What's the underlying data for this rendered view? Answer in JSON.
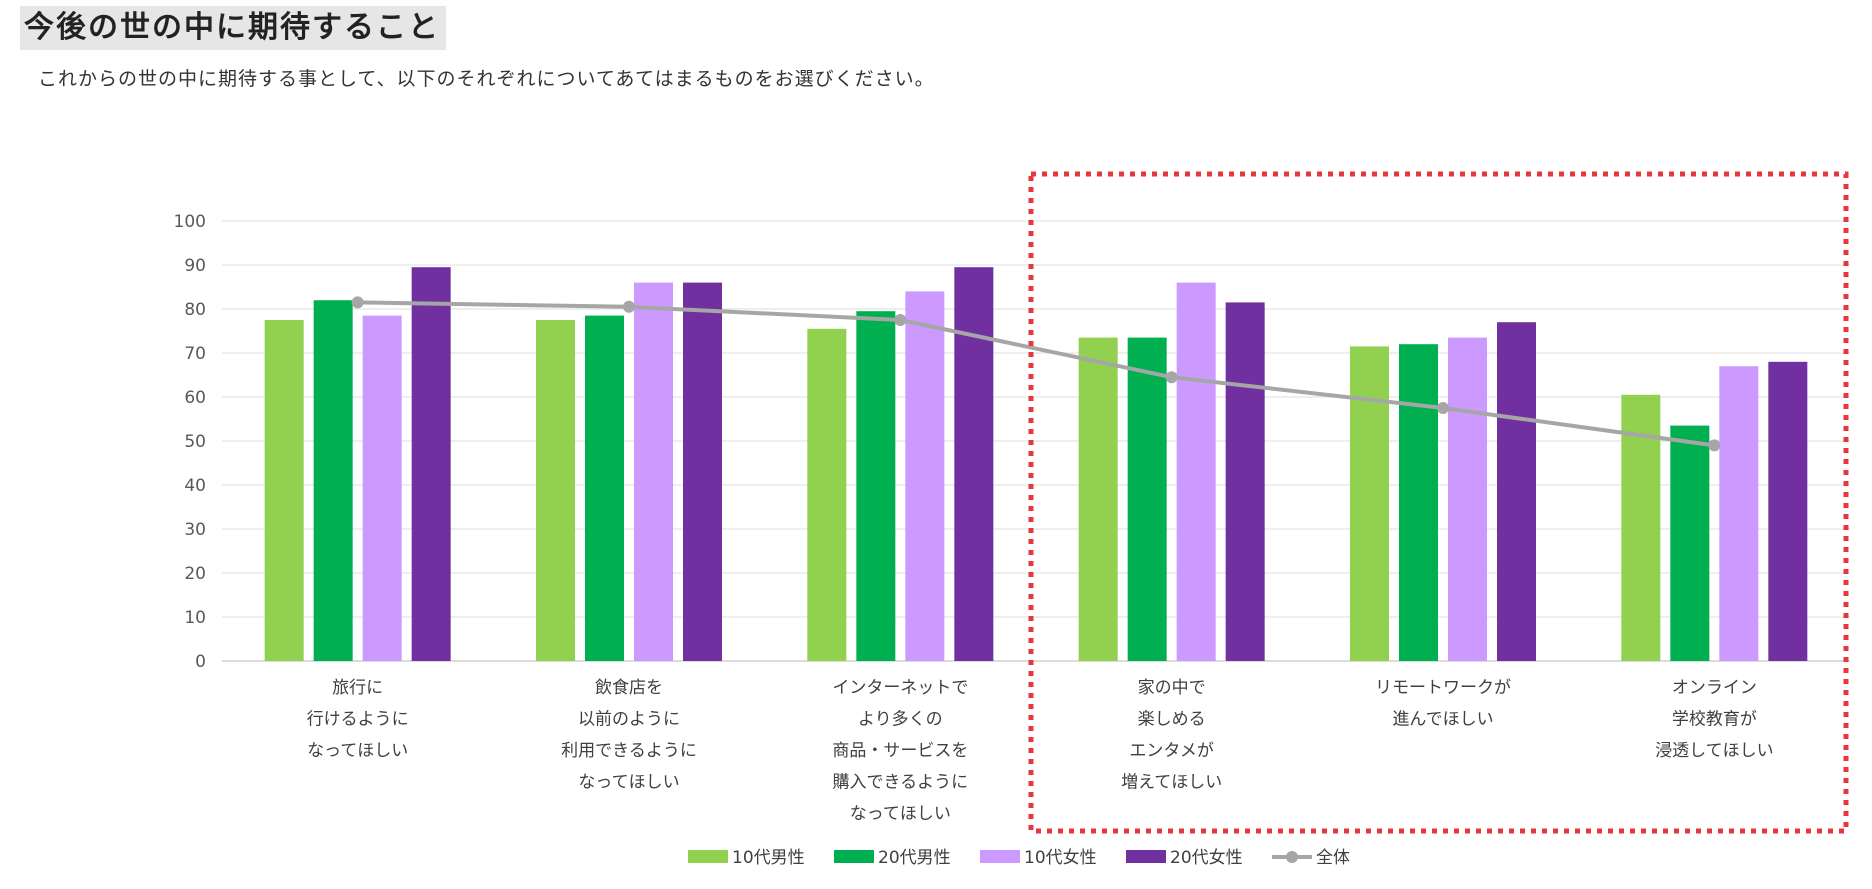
{
  "page": {
    "title": "今後の世の中に期待すること",
    "subtitle": "これからの世の中に期待する事として、以下のそれぞれについてあてはまるものをお選びください。"
  },
  "chart_data": {
    "type": "bar",
    "title": "",
    "xlabel": "",
    "ylabel": "",
    "ylim": [
      0,
      100
    ],
    "yticks": [
      0,
      10,
      20,
      30,
      40,
      50,
      60,
      70,
      80,
      90,
      100
    ],
    "grid": true,
    "legend_position": "bottom",
    "categories": [
      [
        "旅行に",
        "行けるように",
        "なってほしい"
      ],
      [
        "飲食店を",
        "以前のように",
        "利用できるように",
        "なってほしい"
      ],
      [
        "インターネットで",
        "より多くの",
        "商品・サービスを",
        "購入できるように",
        "なってほしい"
      ],
      [
        "家の中で",
        "楽しめる",
        "エンタメが",
        "増えてほしい"
      ],
      [
        "リモートワークが",
        "進んでほしい"
      ],
      [
        "オンライン",
        "学校教育が",
        "浸透してほしい"
      ]
    ],
    "series": [
      {
        "name": "10代男性",
        "type": "bar",
        "color": "#92d050",
        "values": [
          77.5,
          77.5,
          75.5,
          73.5,
          71.5,
          60.5
        ]
      },
      {
        "name": "20代男性",
        "type": "bar",
        "color": "#00b050",
        "values": [
          82,
          78.5,
          79.5,
          73.5,
          72,
          53.5
        ]
      },
      {
        "name": "10代女性",
        "type": "bar",
        "color": "#cc99ff",
        "values": [
          78.5,
          86,
          84,
          86,
          73.5,
          67
        ]
      },
      {
        "name": "20代女性",
        "type": "bar",
        "color": "#7030a0",
        "values": [
          89.5,
          86,
          89.5,
          81.5,
          77,
          68
        ]
      },
      {
        "name": "全体",
        "type": "line",
        "color": "#a6a6a6",
        "values": [
          81.5,
          80.5,
          77.5,
          64.5,
          57.5,
          49
        ]
      }
    ],
    "highlight": {
      "from_category": 3,
      "to_category": 5,
      "style": "dotted",
      "color": "#e8363c"
    }
  }
}
